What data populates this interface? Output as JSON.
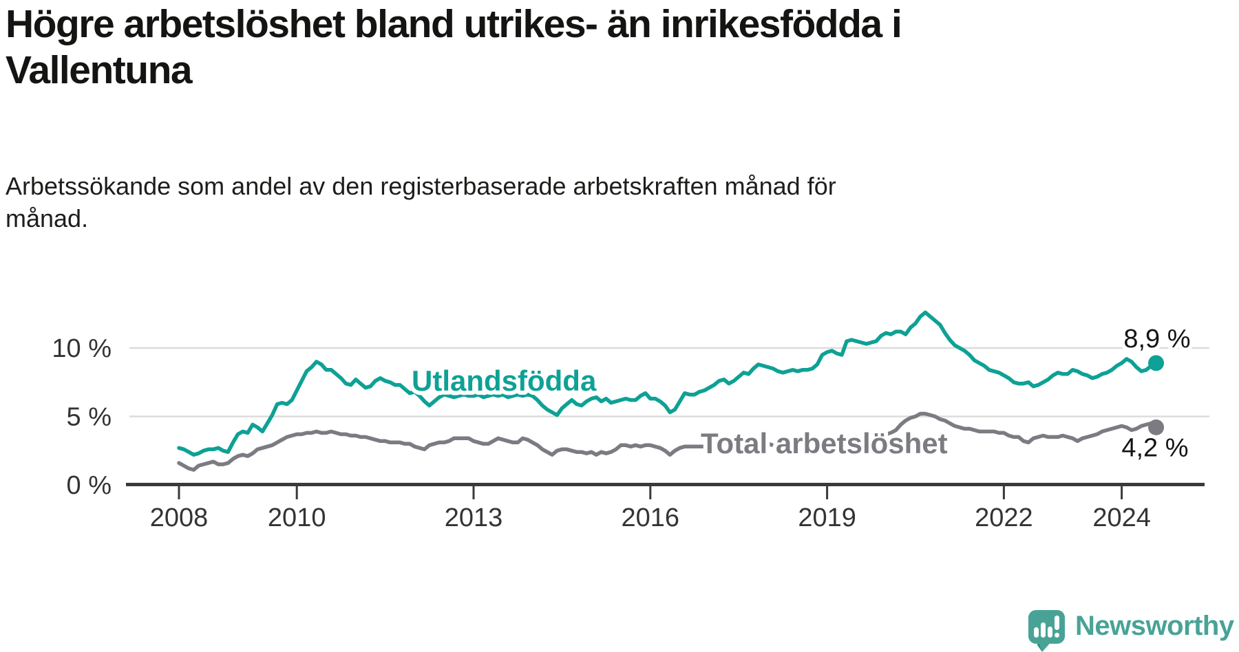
{
  "title": {
    "line1": "Högre arbetslöshet bland utrikes- än inrikesfödda i",
    "line2": "Vallentuna"
  },
  "subtitle": {
    "line1": "Arbetssökande som andel av den registerbaserade arbetskraften månad för",
    "line2": "månad."
  },
  "branding": {
    "logo_text": "Newsworthy",
    "logo_icon": "speech-bubble-with-bar-chart-and-exclamation",
    "logo_color": "#48a396"
  },
  "colors": {
    "foreign_born_line": "#0ea195",
    "total_line": "#7b7b81",
    "gridline": "#dcdcdc",
    "axis": "#3a3a3a",
    "axis_text": "#333333",
    "end_label_text": "#141413",
    "background": "#ffffff"
  },
  "chart_data": {
    "type": "line",
    "unit": "%",
    "frequency": "monthly",
    "start": "2008-01",
    "end": "2024-08",
    "grid": "horizontal",
    "x_tick_labels": [
      "2008",
      "2010",
      "2013",
      "2016",
      "2019",
      "2022",
      "2024"
    ],
    "y_ticks": [
      {
        "value": 0,
        "label": "0 %"
      },
      {
        "value": 5,
        "label": "5 %"
      },
      {
        "value": 10,
        "label": "10 %"
      }
    ],
    "series": [
      {
        "name": "Total arbetslöshet",
        "color": "#7b7b81",
        "end_label": "4,2 %",
        "end_value": 4.2,
        "values": [
          1.6,
          1.4,
          1.2,
          1.1,
          1.4,
          1.5,
          1.6,
          1.7,
          1.5,
          1.5,
          1.6,
          1.9,
          2.1,
          2.2,
          2.1,
          2.3,
          2.6,
          2.7,
          2.8,
          2.9,
          3.1,
          3.3,
          3.5,
          3.6,
          3.7,
          3.7,
          3.8,
          3.8,
          3.9,
          3.8,
          3.8,
          3.9,
          3.8,
          3.7,
          3.7,
          3.6,
          3.6,
          3.5,
          3.5,
          3.4,
          3.3,
          3.2,
          3.2,
          3.1,
          3.1,
          3.1,
          3.0,
          3.0,
          2.8,
          2.7,
          2.6,
          2.9,
          3.0,
          3.1,
          3.1,
          3.2,
          3.4,
          3.4,
          3.4,
          3.4,
          3.2,
          3.1,
          3.0,
          3.0,
          3.2,
          3.4,
          3.3,
          3.2,
          3.1,
          3.1,
          3.4,
          3.3,
          3.1,
          2.9,
          2.6,
          2.4,
          2.2,
          2.5,
          2.6,
          2.6,
          2.5,
          2.4,
          2.4,
          2.3,
          2.4,
          2.2,
          2.4,
          2.3,
          2.4,
          2.6,
          2.9,
          2.9,
          2.8,
          2.9,
          2.8,
          2.9,
          2.9,
          2.8,
          2.7,
          2.5,
          2.2,
          2.5,
          2.7,
          2.8,
          2.8,
          2.8,
          2.8,
          2.8,
          2.8,
          2.9,
          2.8,
          2.8,
          2.9,
          2.8,
          2.9,
          2.9,
          2.9,
          2.9,
          2.9,
          2.9,
          3.0,
          2.9,
          2.9,
          3.0,
          3.0,
          2.9,
          3.0,
          3.0,
          3.0,
          3.0,
          3.1,
          3.1,
          3.2,
          3.2,
          3.2,
          3.2,
          3.3,
          3.4,
          3.4,
          3.5,
          3.4,
          3.5,
          3.5,
          3.6,
          3.7,
          3.8,
          4.0,
          4.4,
          4.7,
          4.9,
          5.0,
          5.2,
          5.2,
          5.1,
          5.0,
          4.8,
          4.7,
          4.5,
          4.3,
          4.2,
          4.1,
          4.1,
          4.0,
          3.9,
          3.9,
          3.9,
          3.9,
          3.8,
          3.8,
          3.6,
          3.5,
          3.5,
          3.2,
          3.1,
          3.4,
          3.5,
          3.6,
          3.5,
          3.5,
          3.5,
          3.6,
          3.5,
          3.4,
          3.2,
          3.4,
          3.5,
          3.6,
          3.7,
          3.9,
          4.0,
          4.1,
          4.2,
          4.3,
          4.2,
          4.0,
          4.1,
          4.3,
          4.4,
          4.5,
          4.2
        ]
      },
      {
        "name": "Utlandsfödda",
        "color": "#0ea195",
        "end_label": "8,9 %",
        "end_value": 8.9,
        "values": [
          2.7,
          2.6,
          2.4,
          2.2,
          2.3,
          2.5,
          2.6,
          2.6,
          2.7,
          2.5,
          2.4,
          3.1,
          3.7,
          3.9,
          3.8,
          4.4,
          4.2,
          3.9,
          4.5,
          5.1,
          5.9,
          6.0,
          5.9,
          6.2,
          6.9,
          7.6,
          8.3,
          8.6,
          9.0,
          8.8,
          8.4,
          8.4,
          8.1,
          7.8,
          7.4,
          7.3,
          7.7,
          7.4,
          7.1,
          7.2,
          7.6,
          7.8,
          7.6,
          7.5,
          7.3,
          7.3,
          7.0,
          6.7,
          6.8,
          6.5,
          6.1,
          5.8,
          6.1,
          6.4,
          6.6,
          6.5,
          6.4,
          6.5,
          6.6,
          6.5,
          6.5,
          6.6,
          6.4,
          6.5,
          6.6,
          6.5,
          6.6,
          6.4,
          6.5,
          6.6,
          6.5,
          6.6,
          6.5,
          6.2,
          5.8,
          5.5,
          5.3,
          5.1,
          5.6,
          5.9,
          6.2,
          5.9,
          5.8,
          6.1,
          6.3,
          6.4,
          6.1,
          6.3,
          6.0,
          6.1,
          6.2,
          6.3,
          6.2,
          6.2,
          6.5,
          6.7,
          6.3,
          6.3,
          6.1,
          5.8,
          5.3,
          5.5,
          6.1,
          6.7,
          6.6,
          6.6,
          6.8,
          6.9,
          7.1,
          7.3,
          7.6,
          7.7,
          7.4,
          7.6,
          7.9,
          8.2,
          8.1,
          8.5,
          8.8,
          8.7,
          8.6,
          8.5,
          8.3,
          8.2,
          8.3,
          8.4,
          8.3,
          8.4,
          8.4,
          8.5,
          8.8,
          9.5,
          9.7,
          9.8,
          9.6,
          9.5,
          10.5,
          10.6,
          10.5,
          10.4,
          10.3,
          10.4,
          10.5,
          10.9,
          11.1,
          11.0,
          11.2,
          11.2,
          11.0,
          11.5,
          11.8,
          12.3,
          12.6,
          12.3,
          12.0,
          11.7,
          11.1,
          10.6,
          10.2,
          10.0,
          9.8,
          9.5,
          9.1,
          8.9,
          8.7,
          8.4,
          8.3,
          8.2,
          8.0,
          7.8,
          7.5,
          7.4,
          7.4,
          7.5,
          7.2,
          7.3,
          7.5,
          7.7,
          8.0,
          8.2,
          8.1,
          8.1,
          8.4,
          8.3,
          8.1,
          8.0,
          7.8,
          7.9,
          8.1,
          8.2,
          8.4,
          8.7,
          8.9,
          9.2,
          9.0,
          8.6,
          8.3,
          8.4,
          8.7,
          8.9
        ]
      }
    ]
  }
}
